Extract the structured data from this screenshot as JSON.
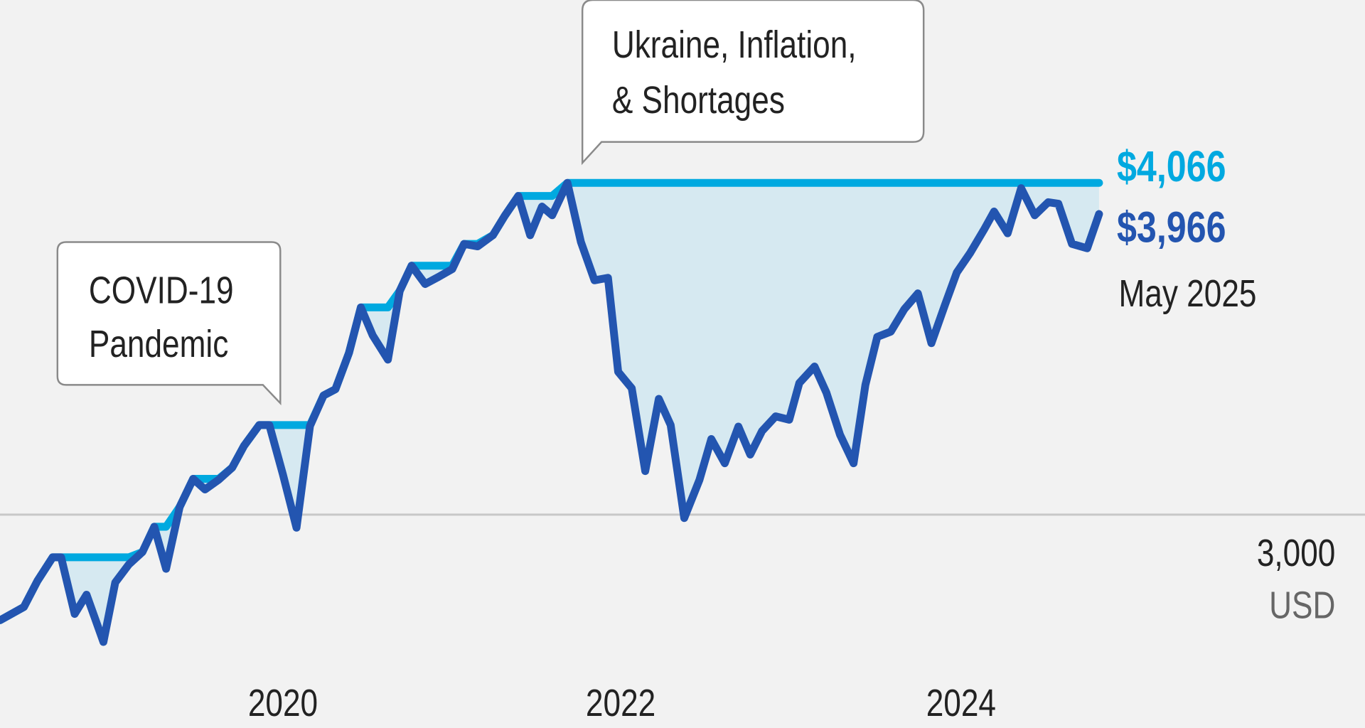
{
  "chart_data": {
    "type": "line",
    "title": "",
    "xlabel": "",
    "ylabel": "",
    "unit_label": "USD",
    "x_ticks": [
      "2020",
      "2022",
      "2024"
    ],
    "y_ticks": [
      {
        "value": 3000,
        "label": "3,000"
      }
    ],
    "grid": "single horizontal gridline at 3,000",
    "ylim": [
      2490,
      4500
    ],
    "xlim": [
      2018.83,
      2026.36
    ],
    "series": [
      {
        "role": "value",
        "color": "#2355b0",
        "x": [
          2018.83,
          2018.97,
          2019.05,
          2019.14,
          2019.19,
          2019.27,
          2019.34,
          2019.44,
          2019.51,
          2019.59,
          2019.67,
          2019.74,
          2019.81,
          2019.89,
          2019.97,
          2020.04,
          2020.12,
          2020.2,
          2020.27,
          2020.36,
          2020.42,
          2020.5,
          2020.58,
          2020.66,
          2020.74,
          2020.81,
          2020.89,
          2020.96,
          2021.03,
          2021.12,
          2021.19,
          2021.26,
          2021.34,
          2021.42,
          2021.5,
          2021.57,
          2021.65,
          2021.74,
          2021.81,
          2021.89,
          2021.96,
          2022.03,
          2022.09,
          2022.18,
          2022.26,
          2022.34,
          2022.42,
          2022.48,
          2022.56,
          2022.64,
          2022.72,
          2022.79,
          2022.87,
          2022.96,
          2023.03,
          2023.11,
          2023.19,
          2023.26,
          2023.33,
          2023.41,
          2023.49,
          2023.55,
          2023.64,
          2023.71,
          2023.79,
          2023.87,
          2023.94,
          2024.01,
          2024.09,
          2024.17,
          2024.25,
          2024.33,
          2024.41,
          2024.48,
          2024.56,
          2024.64,
          2024.7,
          2024.78,
          2024.86,
          2024.94,
          2025.02,
          2025.08,
          2025.16,
          2025.25,
          2025.32
        ],
        "y": [
          2661,
          2703,
          2787,
          2863,
          2863,
          2681,
          2743,
          2591,
          2782,
          2840,
          2880,
          2961,
          2826,
          3025,
          3115,
          3081,
          3112,
          3151,
          3221,
          3288,
          3288,
          3129,
          2958,
          3285,
          3383,
          3403,
          3520,
          3666,
          3576,
          3498,
          3719,
          3800,
          3741,
          3764,
          3789,
          3870,
          3862,
          3898,
          3960,
          4024,
          3898,
          3990,
          3962,
          4066,
          3876,
          3753,
          3761,
          3459,
          3406,
          3140,
          3372,
          3288,
          2989,
          3112,
          3243,
          3165,
          3283,
          3193,
          3269,
          3316,
          3305,
          3423,
          3476,
          3392,
          3257,
          3165,
          3417,
          3571,
          3588,
          3660,
          3711,
          3551,
          3674,
          3778,
          3842,
          3915,
          3974,
          3904,
          4049,
          3962,
          4004,
          3999,
          3870,
          3856,
          3966
        ]
      },
      {
        "role": "running-peak",
        "color": "#00a9e0",
        "derived_from": "running maximum of value series"
      }
    ],
    "drawdown_fill_color": "#d6e9f1",
    "end_labels": {
      "peak_value": "$4,066",
      "current_value": "$3,966",
      "date": "May 2025"
    },
    "annotations": [
      {
        "lines": [
          "COVID-19",
          "Pandemic"
        ],
        "x": 2020.42
      },
      {
        "lines": [
          "Ukraine, Inflation,",
          "& Shortages"
        ],
        "x": 2022.18
      }
    ]
  }
}
